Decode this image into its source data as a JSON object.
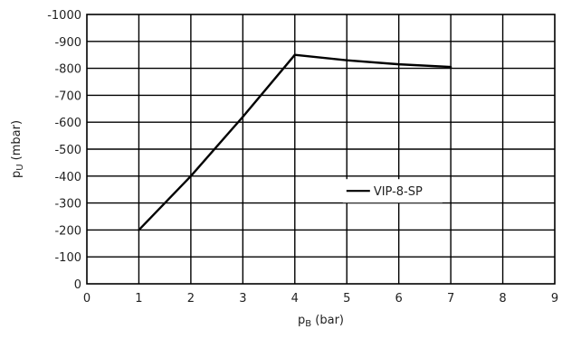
{
  "chart_data": {
    "type": "line",
    "title": "",
    "xlabel": "p",
    "xlabel_sub": "B",
    "xlabel_unit": " (bar)",
    "ylabel": "p",
    "ylabel_sub": "U",
    "ylabel_unit": " (mbar)",
    "xlim": [
      0,
      9
    ],
    "ylim": [
      0,
      -1000
    ],
    "x_ticks": [
      "0",
      "1",
      "2",
      "3",
      "4",
      "5",
      "6",
      "7",
      "8",
      "9"
    ],
    "y_ticks": [
      "0",
      "-100",
      "-200",
      "-300",
      "-400",
      "-500",
      "-600",
      "-700",
      "-800",
      "-900",
      "-1000"
    ],
    "grid": true,
    "legend_position": "right",
    "series": [
      {
        "name": "VIP-8-SP",
        "color": "#000000",
        "x": [
          1,
          2,
          3,
          4,
          5,
          6,
          7
        ],
        "y": [
          -200,
          -400,
          -620,
          -850,
          -830,
          -815,
          -805
        ]
      }
    ]
  }
}
